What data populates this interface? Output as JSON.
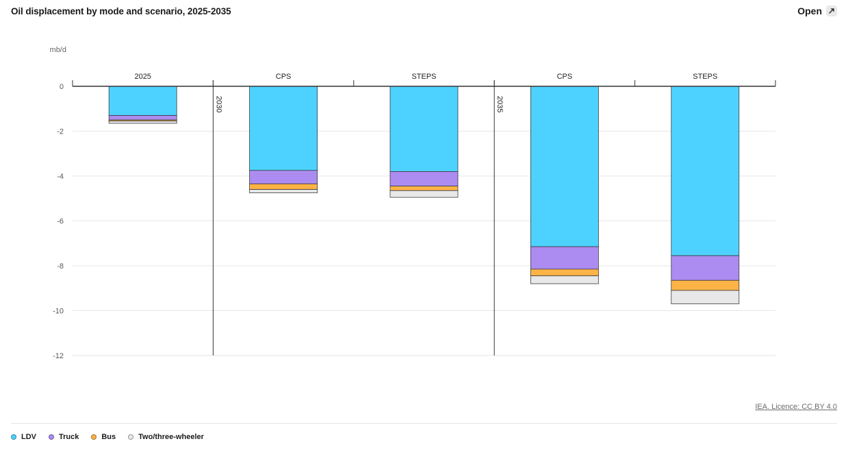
{
  "header": {
    "title": "Oil displacement by mode and scenario, 2025-2035",
    "open_label": "Open"
  },
  "credit": "IEA. Licence: CC BY 4.0",
  "colors": {
    "LDV": "#4dd2ff",
    "Truck": "#ac8cf0",
    "Bus": "#ffb347",
    "Two/three-wheeler": "#e8e8e8"
  },
  "legend": [
    {
      "name": "LDV",
      "color": "#4dd2ff"
    },
    {
      "name": "Truck",
      "color": "#ac8cf0"
    },
    {
      "name": "Bus",
      "color": "#ffb347"
    },
    {
      "name": "Two/three-wheeler",
      "color": "#e8e8e8"
    }
  ],
  "chart_data": {
    "type": "bar",
    "stacked": true,
    "title": "Oil displacement by mode and scenario, 2025-2035",
    "ylabel": "mb/d",
    "ylim": [
      -12,
      0
    ],
    "yticks": [
      0,
      -2,
      -4,
      -6,
      -8,
      -10,
      -12
    ],
    "grid": true,
    "legend_position": "bottom-left",
    "groups": [
      {
        "label": "",
        "categories": [
          "2025"
        ]
      },
      {
        "label": "2030",
        "categories": [
          "CPS",
          "STEPS"
        ]
      },
      {
        "label": "2035",
        "categories": [
          "CPS",
          "STEPS"
        ]
      }
    ],
    "categories": [
      "2025",
      "CPS",
      "STEPS",
      "CPS",
      "STEPS"
    ],
    "series": [
      {
        "name": "LDV",
        "values": [
          -1.3,
          -3.75,
          -3.8,
          -7.15,
          -7.55
        ]
      },
      {
        "name": "Truck",
        "values": [
          -0.2,
          -0.6,
          -0.65,
          -1.0,
          -1.1
        ]
      },
      {
        "name": "Bus",
        "values": [
          -0.05,
          -0.25,
          -0.2,
          -0.3,
          -0.45
        ]
      },
      {
        "name": "Two/three-wheeler",
        "values": [
          -0.1,
          -0.15,
          -0.3,
          -0.35,
          -0.6
        ]
      }
    ]
  }
}
